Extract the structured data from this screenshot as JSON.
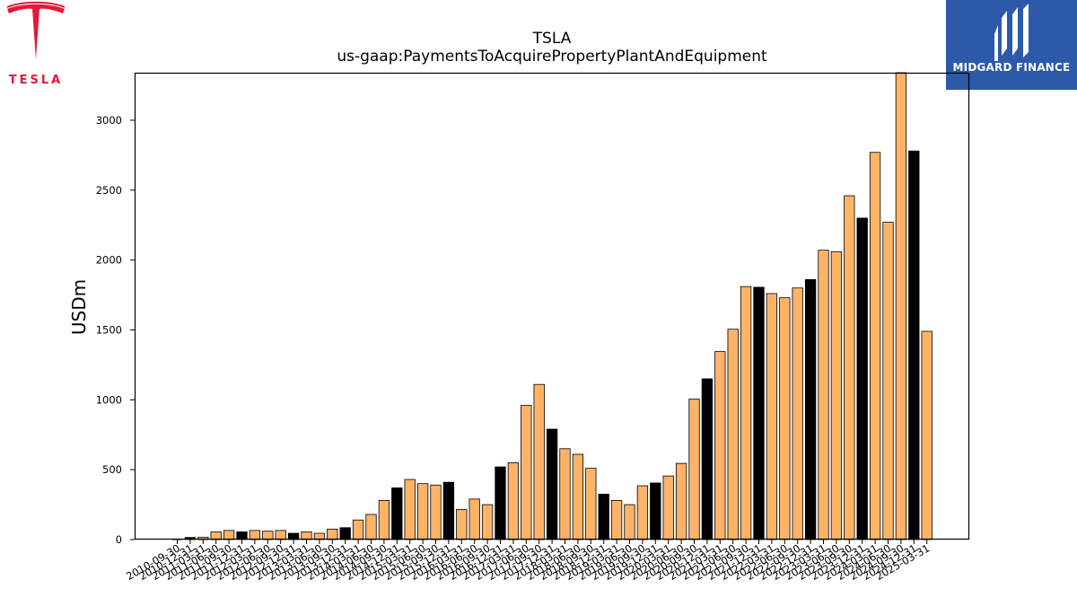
{
  "logos": {
    "left_text": "TESLA",
    "right_text": "MIDGARD FINANCE"
  },
  "colors": {
    "bar_default": "#ffb366",
    "bar_highlight": "#000000",
    "edge": "#000000",
    "tesla_red": "#e31937",
    "midgard_blue": "#2c5aa8"
  },
  "chart_data": {
    "type": "bar",
    "title": "TSLA",
    "subtitle": "us-gaap:PaymentsToAcquirePropertyPlantAndEquipment",
    "xlabel": "",
    "ylabel": "USDm",
    "ylim": [
      0,
      3340
    ],
    "yticks": [
      0,
      500,
      1000,
      1500,
      2000,
      2500,
      3000
    ],
    "grid": false,
    "legend": "none",
    "categories": [
      "2010-09-30",
      "2010-12-31",
      "2011-03-31",
      "2011-06-30",
      "2011-09-30",
      "2011-12-31",
      "2012-03-31",
      "2012-06-30",
      "2012-09-30",
      "2012-12-31",
      "2013-03-31",
      "2013-06-30",
      "2013-09-30",
      "2013-12-31",
      "2014-03-31",
      "2014-06-30",
      "2014-09-30",
      "2014-12-31",
      "2015-03-31",
      "2015-06-30",
      "2015-09-30",
      "2015-12-31",
      "2016-03-31",
      "2016-06-30",
      "2016-09-30",
      "2016-12-31",
      "2017-03-31",
      "2017-06-30",
      "2017-09-30",
      "2017-12-31",
      "2018-03-31",
      "2018-06-30",
      "2018-09-30",
      "2018-12-31",
      "2019-03-31",
      "2019-06-30",
      "2019-09-30",
      "2019-12-31",
      "2020-03-31",
      "2020-06-30",
      "2020-09-30",
      "2020-12-31",
      "2021-03-31",
      "2021-06-30",
      "2021-09-30",
      "2021-12-31",
      "2022-03-31",
      "2022-06-30",
      "2022-09-30",
      "2022-12-31",
      "2023-03-31",
      "2023-06-30",
      "2023-09-30",
      "2023-12-31",
      "2024-03-31",
      "2024-06-30",
      "2024-09-30",
      "2024-12-31",
      "2025-03-31"
    ],
    "values": [
      3,
      15,
      17,
      55,
      65,
      55,
      65,
      60,
      65,
      45,
      55,
      45,
      75,
      85,
      140,
      180,
      280,
      370,
      430,
      400,
      390,
      410,
      215,
      290,
      250,
      520,
      550,
      960,
      1110,
      790,
      650,
      610,
      510,
      325,
      280,
      250,
      385,
      405,
      455,
      545,
      1005,
      1150,
      1345,
      1505,
      1810,
      1805,
      1760,
      1730,
      1800,
      1860,
      2070,
      2060,
      2460,
      2300,
      2770,
      2270,
      3340,
      2780,
      1490
    ],
    "highlight": [
      false,
      true,
      false,
      false,
      false,
      true,
      false,
      false,
      false,
      true,
      false,
      false,
      false,
      true,
      false,
      false,
      false,
      true,
      false,
      false,
      false,
      true,
      false,
      false,
      false,
      true,
      false,
      false,
      false,
      true,
      false,
      false,
      false,
      true,
      false,
      false,
      false,
      true,
      false,
      false,
      false,
      true,
      false,
      false,
      false,
      true,
      false,
      false,
      false,
      true,
      false,
      false,
      false,
      true,
      false,
      false,
      false,
      true,
      false
    ]
  }
}
